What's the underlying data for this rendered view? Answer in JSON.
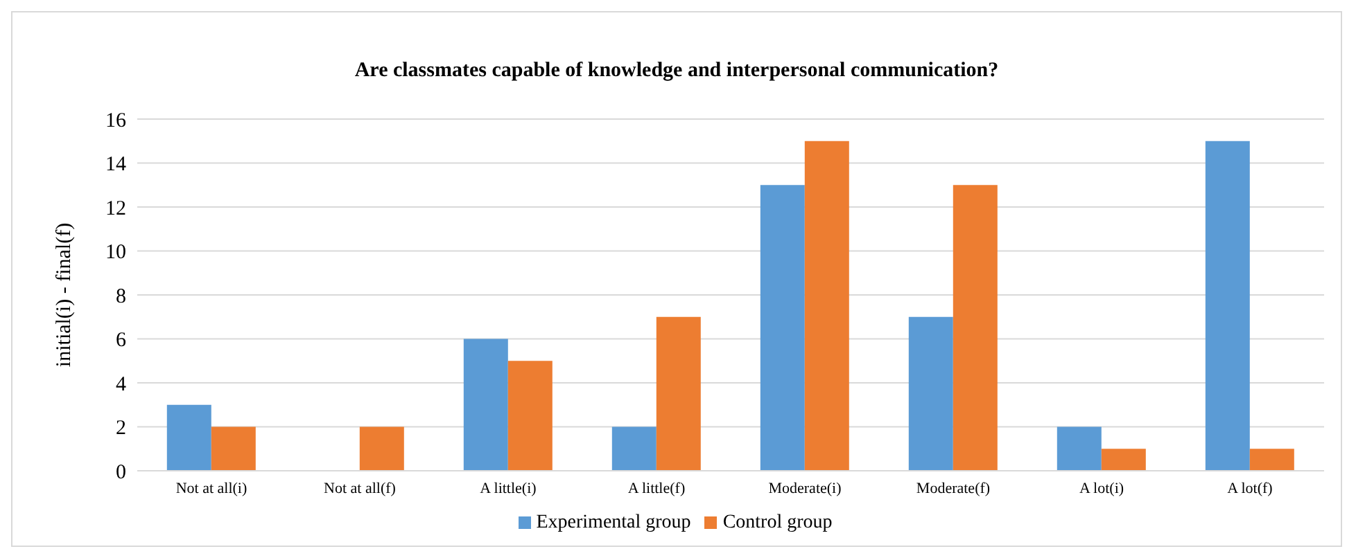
{
  "chart_data": {
    "type": "bar",
    "title": "Are classmates capable of knowledge and interpersonal communication?",
    "ylabel": "initial(i)  -  final(f)",
    "categories": [
      "Not at all(i)",
      "Not at all(f)",
      "A little(i)",
      "A little(f)",
      "Moderate(i)",
      "Moderate(f)",
      "A lot(i)",
      "A lot(f)"
    ],
    "series": [
      {
        "name": "Experimental group",
        "color": "#5b9bd5",
        "values": [
          3,
          0,
          6,
          2,
          13,
          7,
          2,
          15
        ]
      },
      {
        "name": "Control group",
        "color": "#ed7d31",
        "values": [
          2,
          2,
          5,
          7,
          15,
          13,
          1,
          1
        ]
      }
    ],
    "ylim": [
      0,
      16
    ],
    "yticks": [
      0,
      2,
      4,
      6,
      8,
      10,
      12,
      14,
      16
    ],
    "grid": "y",
    "legend": "bottom"
  }
}
